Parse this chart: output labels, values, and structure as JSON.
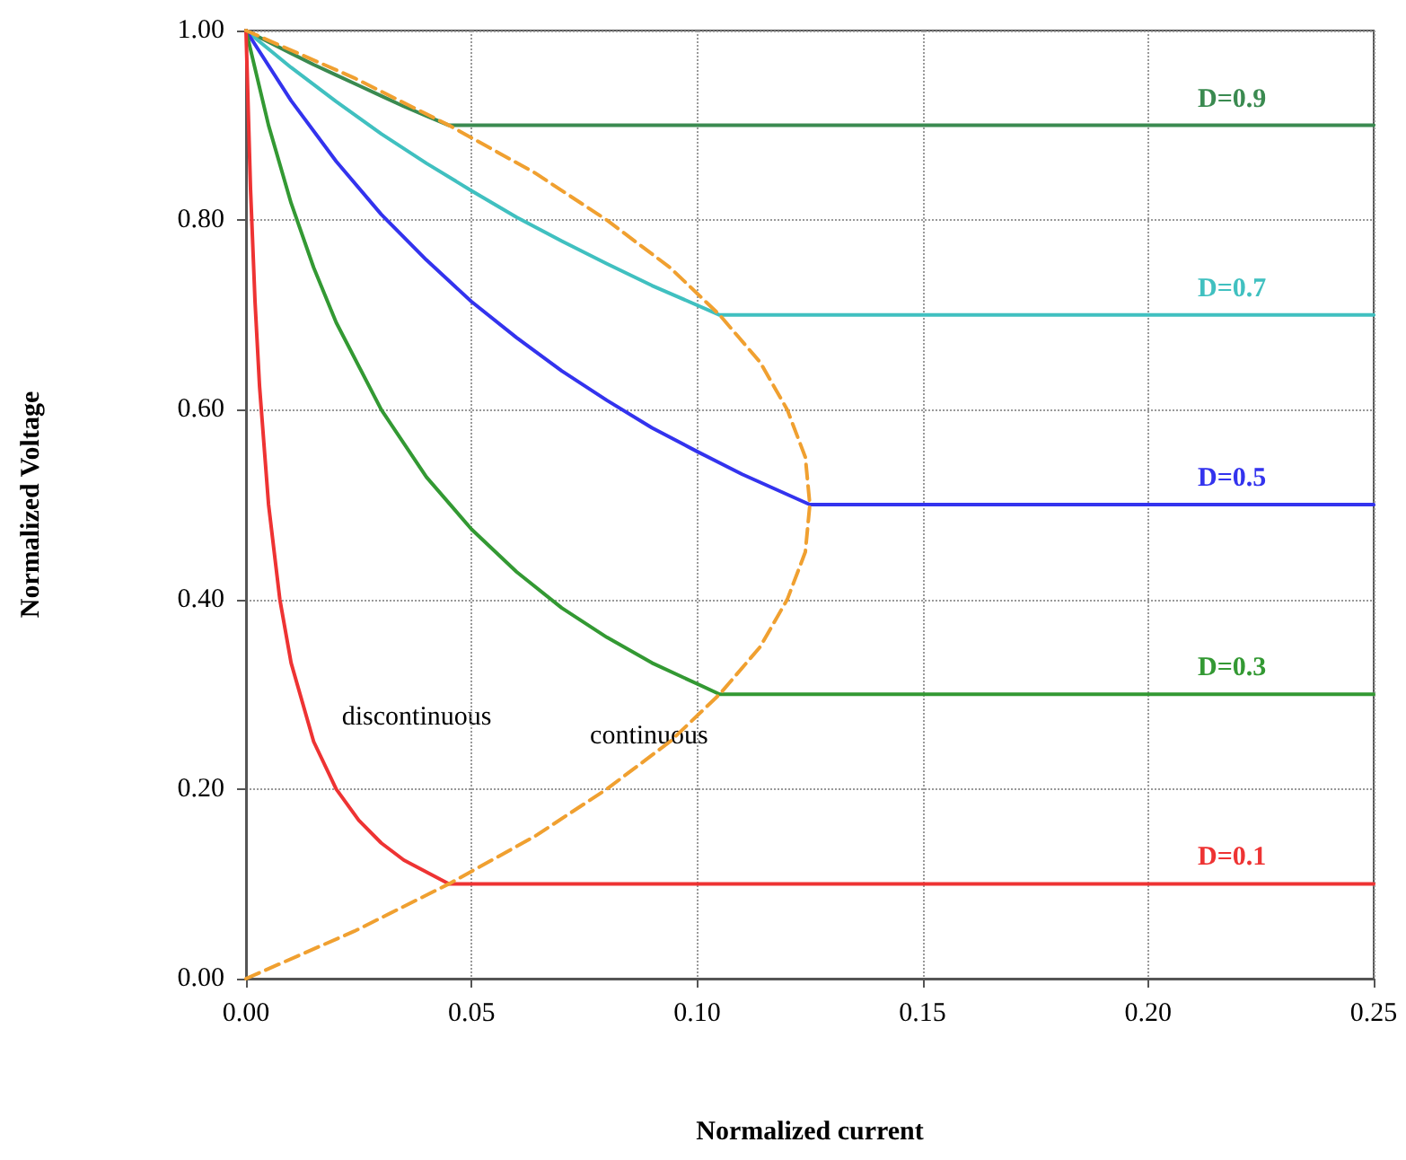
{
  "chart_data": {
    "type": "line",
    "xlabel": "Normalized current",
    "ylabel": "Normalized Voltage",
    "xlim": [
      0,
      0.25
    ],
    "ylim": [
      0,
      1
    ],
    "xticks": [
      {
        "value": 0,
        "label": "0.00"
      },
      {
        "value": 0.05,
        "label": "0.05"
      },
      {
        "value": 0.1,
        "label": "0.10"
      },
      {
        "value": 0.15,
        "label": "0.15"
      },
      {
        "value": 0.2,
        "label": "0.20"
      },
      {
        "value": 0.25,
        "label": "0.25"
      }
    ],
    "yticks": [
      {
        "value": 0,
        "label": "0.00"
      },
      {
        "value": 0.2,
        "label": "0.20"
      },
      {
        "value": 0.4,
        "label": "0.40"
      },
      {
        "value": 0.6,
        "label": "0.60"
      },
      {
        "value": 0.8,
        "label": "0.80"
      },
      {
        "value": 1,
        "label": "1.00"
      }
    ],
    "grid": true,
    "legend": false,
    "marker": "none",
    "line_style": "solid",
    "series": [
      {
        "name": "D=0.9",
        "color": "#3a8a50",
        "x": [
          0,
          0.005,
          0.01,
          0.015,
          0.02,
          0.025,
          0.03,
          0.035,
          0.04,
          0.045,
          0.25
        ],
        "values": [
          1,
          0.988,
          0.976,
          0.964,
          0.953,
          0.942,
          0.931,
          0.92,
          0.91,
          0.9,
          0.9
        ]
      },
      {
        "name": "D=0.7",
        "color": "#40c0c0",
        "x": [
          0,
          0.01,
          0.02,
          0.03,
          0.04,
          0.05,
          0.06,
          0.07,
          0.08,
          0.09,
          0.105,
          0.25
        ],
        "values": [
          1,
          0.961,
          0.925,
          0.891,
          0.86,
          0.831,
          0.803,
          0.778,
          0.754,
          0.731,
          0.7,
          0.7
        ]
      },
      {
        "name": "D=0.5",
        "color": "#3333ee",
        "x": [
          0,
          0.01,
          0.02,
          0.03,
          0.04,
          0.05,
          0.06,
          0.07,
          0.08,
          0.09,
          0.1,
          0.11,
          0.125,
          0.25
        ],
        "values": [
          1,
          0.926,
          0.862,
          0.806,
          0.758,
          0.714,
          0.676,
          0.641,
          0.61,
          0.581,
          0.556,
          0.532,
          0.5,
          0.5
        ]
      },
      {
        "name": "D=0.3",
        "color": "#339933",
        "x": [
          0,
          0.005,
          0.01,
          0.015,
          0.02,
          0.03,
          0.04,
          0.05,
          0.06,
          0.07,
          0.08,
          0.09,
          0.105,
          0.25
        ],
        "values": [
          1,
          0.9,
          0.818,
          0.75,
          0.692,
          0.6,
          0.529,
          0.474,
          0.429,
          0.391,
          0.36,
          0.333,
          0.3,
          0.3
        ]
      },
      {
        "name": "D=0.1",
        "color": "#ee3333",
        "x": [
          0,
          0.001,
          0.002,
          0.003,
          0.005,
          0.0075,
          0.01,
          0.015,
          0.02,
          0.025,
          0.03,
          0.035,
          0.045,
          0.25
        ],
        "values": [
          1,
          0.833,
          0.714,
          0.625,
          0.5,
          0.4,
          0.333,
          0.25,
          0.2,
          0.167,
          0.143,
          0.125,
          0.1,
          0.1
        ]
      },
      {
        "color": "#f0a030",
        "line_style": "dashed",
        "x": [
          0,
          0.024,
          0.045,
          0.064,
          0.08,
          0.094,
          0.105,
          0.114,
          0.12,
          0.124,
          0.125,
          0.124,
          0.12,
          0.114,
          0.105,
          0.094,
          0.08,
          0.064,
          0.045,
          0.024,
          0
        ],
        "values": [
          0,
          0.05,
          0.1,
          0.15,
          0.2,
          0.25,
          0.3,
          0.35,
          0.4,
          0.45,
          0.5,
          0.55,
          0.6,
          0.65,
          0.7,
          0.75,
          0.8,
          0.85,
          0.9,
          0.95,
          1
        ]
      }
    ],
    "annotations": [
      "discontinuous",
      "continuous"
    ]
  }
}
